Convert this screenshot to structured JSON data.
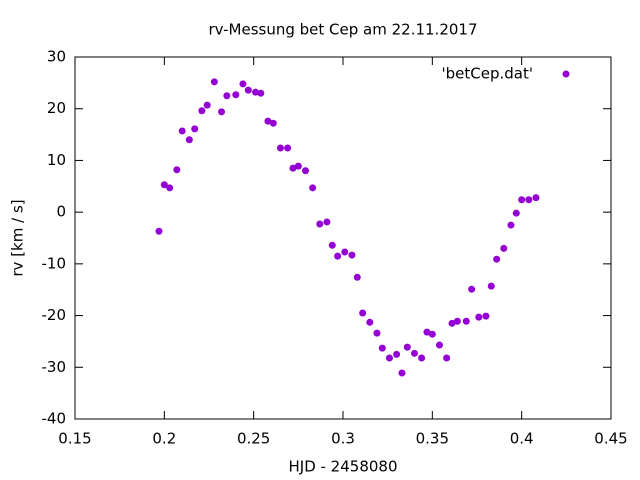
{
  "chart_data": {
    "type": "scatter",
    "title": "rv-Messung bet Cep am 22.11.2017",
    "x_label": "HJD - 2458080",
    "y_label": "rv [km / s]",
    "xlim": [
      0.15,
      0.45
    ],
    "xticks": [
      0.15,
      0.2,
      0.25,
      0.3,
      0.35,
      0.4,
      0.45
    ],
    "ylim": [
      -40,
      30
    ],
    "yticks": [
      -40,
      -30,
      -20,
      -10,
      0,
      10,
      20,
      30
    ],
    "legend_position": "top-right",
    "series": [
      {
        "name": "'betCep.dat'",
        "color": "#9400d3",
        "x": [
          0.197,
          0.2,
          0.203,
          0.207,
          0.21,
          0.214,
          0.217,
          0.221,
          0.224,
          0.228,
          0.232,
          0.235,
          0.24,
          0.244,
          0.247,
          0.251,
          0.254,
          0.258,
          0.261,
          0.265,
          0.269,
          0.272,
          0.275,
          0.279,
          0.283,
          0.287,
          0.291,
          0.294,
          0.297,
          0.301,
          0.305,
          0.308,
          0.311,
          0.315,
          0.319,
          0.322,
          0.326,
          0.33,
          0.333,
          0.336,
          0.34,
          0.344,
          0.347,
          0.35,
          0.354,
          0.358,
          0.361,
          0.364,
          0.369,
          0.372,
          0.376,
          0.38,
          0.383,
          0.386,
          0.39,
          0.394,
          0.397,
          0.4,
          0.404,
          0.408
        ],
        "values": [
          -3.7,
          5.3,
          4.7,
          8.2,
          15.7,
          14.0,
          16.1,
          19.6,
          20.7,
          25.2,
          19.4,
          22.5,
          22.7,
          24.8,
          23.6,
          23.2,
          23.0,
          17.6,
          17.2,
          12.4,
          12.4,
          8.5,
          8.9,
          8.0,
          4.7,
          -2.3,
          -1.9,
          -6.4,
          -8.5,
          -7.7,
          -8.3,
          -12.6,
          -19.5,
          -21.3,
          -23.4,
          -26.3,
          -28.2,
          -27.5,
          -31.1,
          -26.1,
          -27.3,
          -28.2,
          -23.2,
          -23.6,
          -25.7,
          -28.2,
          -21.5,
          -21.1,
          -21.1,
          -14.9,
          -20.3,
          -20.1,
          -14.3,
          -9.1,
          -7.0,
          -2.5,
          -0.2,
          2.4,
          2.4,
          2.8
        ]
      }
    ]
  }
}
